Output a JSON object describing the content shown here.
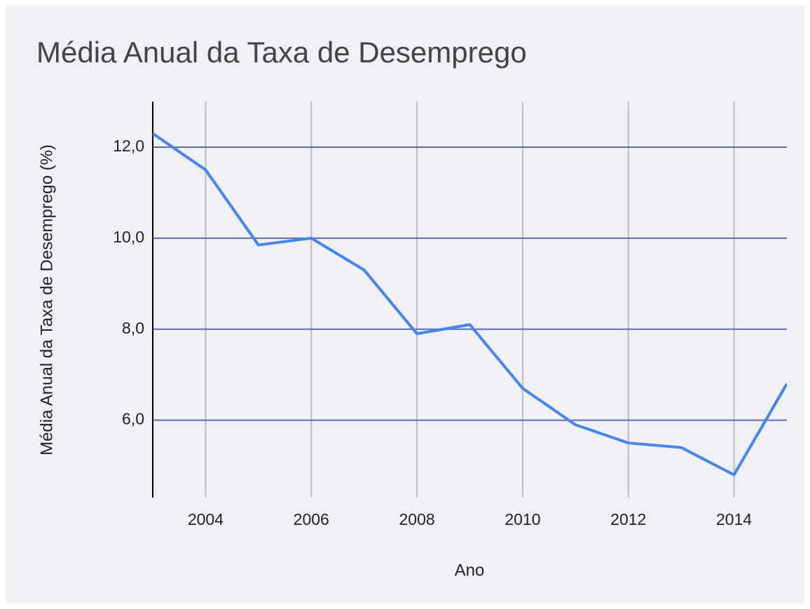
{
  "chart_data": {
    "type": "line",
    "title": "Média Anual da Taxa de Desemprego",
    "xlabel": "Ano",
    "ylabel": "Média Anual da Taxa de Desemprego (%)",
    "x": [
      2003,
      2004,
      2005,
      2006,
      2007,
      2008,
      2009,
      2010,
      2011,
      2012,
      2013,
      2014,
      2015
    ],
    "series": [
      {
        "name": "Média Anual da Taxa de Desemprego",
        "color": "#4285f4",
        "values": [
          12.3,
          11.5,
          9.85,
          10.0,
          9.3,
          7.9,
          8.1,
          6.7,
          5.9,
          5.5,
          5.4,
          4.8,
          6.8
        ]
      }
    ],
    "xlim": [
      2003,
      2015
    ],
    "xticks": [
      2004,
      2006,
      2008,
      2010,
      2012,
      2014
    ],
    "ylim": [
      4.3,
      13.0
    ],
    "yticks": [
      {
        "value": 6,
        "label": "6,0"
      },
      {
        "value": 8,
        "label": "8,0"
      },
      {
        "value": 10,
        "label": "10,0"
      },
      {
        "value": 12,
        "label": "12,0"
      }
    ],
    "grid": true
  }
}
